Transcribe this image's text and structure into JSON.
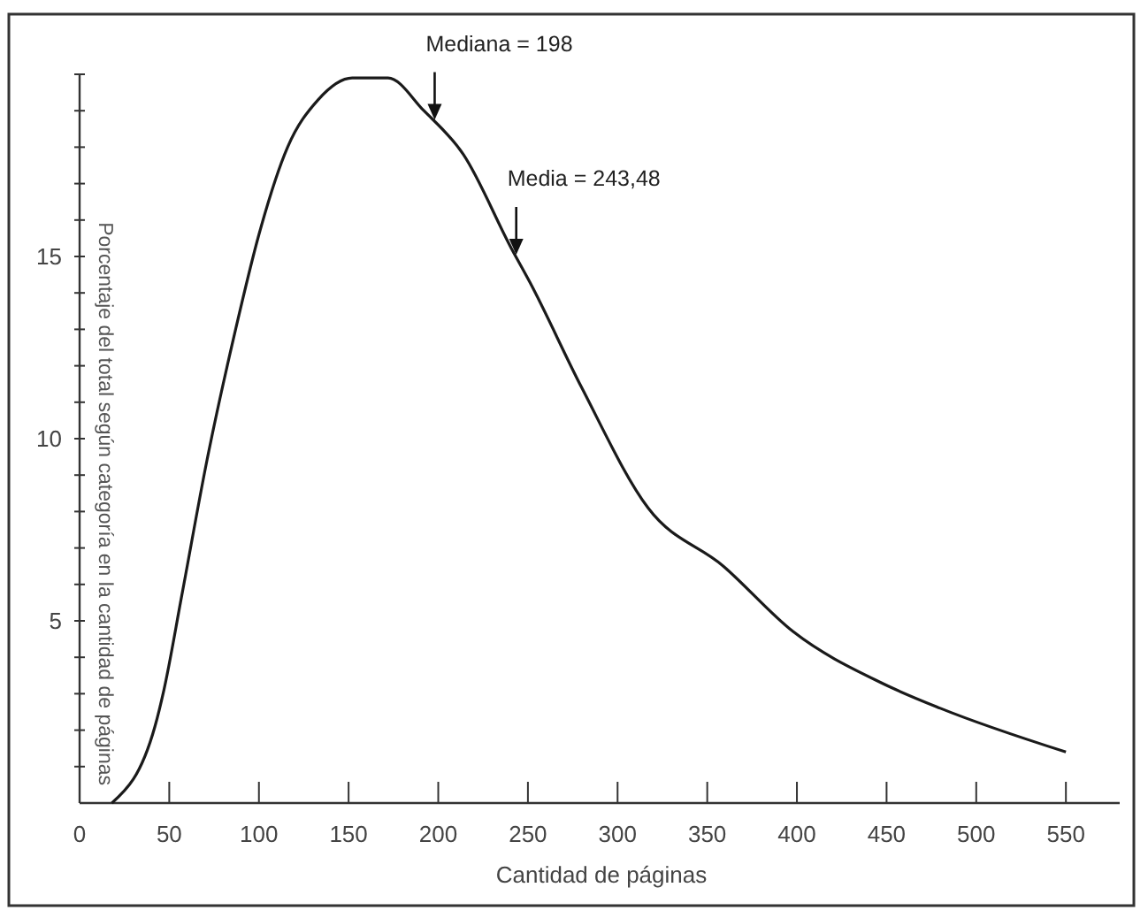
{
  "chart_data": {
    "type": "line",
    "xlabel": "Cantidad de páginas",
    "ylabel": "Porcentaje del total según categoría en la cantidad de páginas",
    "x": [
      18,
      42,
      47,
      57,
      71,
      87,
      100,
      116,
      133,
      152,
      172,
      192,
      214,
      241,
      251,
      280,
      317,
      359,
      398,
      447,
      480,
      550
    ],
    "series": [
      {
        "color": "#1a1a1a",
        "values": [
          0,
          2.1,
          3.1,
          5.7,
          9.4,
          13.0,
          15.6,
          18.0,
          19.3,
          19.9,
          19.9,
          19.0,
          17.8,
          15.2,
          14.3,
          11.4,
          8.1,
          6.5,
          4.7,
          3.3,
          2.6,
          1.4
        ]
      }
    ],
    "xlim": [
      0,
      580
    ],
    "xticks": [
      0,
      50,
      100,
      150,
      200,
      250,
      300,
      350,
      400,
      450,
      500,
      550
    ],
    "ylim": [
      0,
      20
    ],
    "yticks": [
      {
        "value": 1,
        "label": null
      },
      {
        "value": 2,
        "label": null
      },
      {
        "value": 3,
        "label": null
      },
      {
        "value": 4,
        "label": null
      },
      5,
      {
        "value": 6,
        "label": null
      },
      {
        "value": 7,
        "label": null
      },
      {
        "value": 8,
        "label": null
      },
      {
        "value": 9,
        "label": null
      },
      10,
      {
        "value": 11,
        "label": null
      },
      {
        "value": 12,
        "label": null
      },
      {
        "value": 13,
        "label": null
      },
      {
        "value": 14,
        "label": null
      },
      15,
      {
        "value": 16,
        "label": null
      },
      {
        "value": 17,
        "label": null
      },
      {
        "value": 18,
        "label": null
      },
      {
        "value": 19,
        "label": null
      },
      {
        "value": 20,
        "label": null
      }
    ],
    "annotations": [
      {
        "text": "Mediana = 198",
        "x": 198,
        "y": 18.7
      },
      {
        "text": "Media = 243,48",
        "x": 243.48,
        "y": 15.0
      }
    ]
  }
}
